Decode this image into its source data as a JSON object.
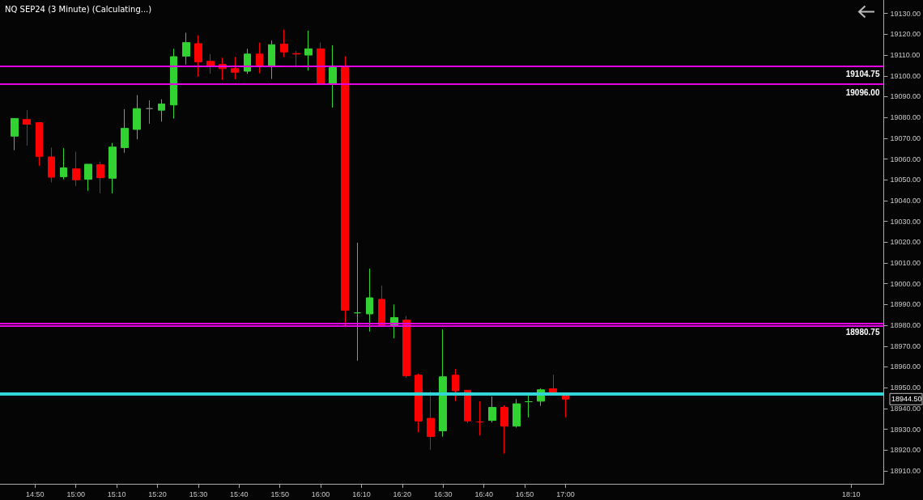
{
  "chart_data": {
    "type": "candlestick",
    "title": "NQ SEP24 (3 Minute) (Calculating...)",
    "x": [
      14.75,
      14.8,
      14.85,
      14.9,
      14.95,
      15,
      15.05,
      15.1,
      15.15,
      15.2,
      15.25,
      15.3,
      15.35,
      15.4,
      15.45,
      15.5,
      15.55,
      15.6,
      15.65,
      15.7,
      15.75,
      15.8,
      15.85,
      15.9,
      15.95,
      16,
      16.05,
      16.1,
      16.15,
      16.2,
      16.25,
      16.3,
      16.35,
      16.4,
      16.45,
      16.5,
      16.55,
      16.6,
      16.65,
      16.7,
      16.75,
      16.8,
      16.85,
      16.9,
      16.95,
      17
    ],
    "ohlc": [
      [
        19071,
        19079.5,
        19064.25,
        19079.5
      ],
      [
        19079,
        19083.5,
        19066.5,
        19076.75
      ],
      [
        19077.5,
        19077.5,
        19056.75,
        19061.25
      ],
      [
        19061,
        19065.5,
        19048.75,
        19051.25
      ],
      [
        19051.5,
        19065.25,
        19050.25,
        19055.75
      ],
      [
        19055.25,
        19063.5,
        19047,
        19050
      ],
      [
        19050.25,
        19057.5,
        19044.75,
        19057.5
      ],
      [
        19057.25,
        19058.75,
        19043.5,
        19051
      ],
      [
        19050.75,
        19067.75,
        19043.5,
        19065.75
      ],
      [
        19065.5,
        19084,
        19063,
        19074.75
      ],
      [
        19074.25,
        19090.75,
        19069.5,
        19084.25
      ],
      [
        19084.25,
        19088.25,
        19077,
        19084.25
      ],
      [
        19083.5,
        19088.75,
        19078,
        19086.5
      ],
      [
        19086,
        19113,
        19079.5,
        19109.25
      ],
      [
        19109.5,
        19120.75,
        19105.5,
        19116
      ],
      [
        19115.5,
        19119.5,
        19099.5,
        19106.75
      ],
      [
        19107,
        19110.5,
        19101,
        19104.75
      ],
      [
        19105.5,
        19108.75,
        19098,
        19103.5
      ],
      [
        19103.5,
        19109,
        19098.5,
        19101.75
      ],
      [
        19102.25,
        19113,
        19101,
        19110.5
      ],
      [
        19110.5,
        19116,
        19101.25,
        19105
      ],
      [
        19104.75,
        19117,
        19098.5,
        19115
      ],
      [
        19115.25,
        19122.25,
        19109,
        19111.5
      ],
      [
        19110.75,
        19112,
        19104.5,
        19110.5
      ],
      [
        19110,
        19121.75,
        19102.5,
        19113
      ],
      [
        19113,
        19116,
        19096,
        19096
      ],
      [
        19096,
        19114.75,
        19084.75,
        19104
      ],
      [
        19104,
        19109.5,
        18980,
        18987.25
      ],
      [
        18986,
        19019.75,
        18963,
        18986
      ],
      [
        18985.5,
        19007.25,
        18977,
        18993.25
      ],
      [
        18992.5,
        18999,
        18980.25,
        18980.25
      ],
      [
        18979.75,
        18990,
        18973.75,
        18983.75
      ],
      [
        18982.5,
        18984.5,
        18954.75,
        18955.75
      ],
      [
        18956,
        18956.75,
        18928.5,
        18934
      ],
      [
        18935.25,
        18948.25,
        18920,
        18926.5
      ],
      [
        18929.25,
        18978,
        18926.5,
        18955.25
      ],
      [
        18956,
        18959,
        18943.5,
        18948.5
      ],
      [
        18948.75,
        18948.75,
        18933,
        18934
      ],
      [
        18933.5,
        18943.5,
        18927,
        18933.5
      ],
      [
        18934.25,
        18945.75,
        18933.25,
        18940.5
      ],
      [
        18940.5,
        18941.5,
        18918.25,
        18931.5
      ],
      [
        18931.5,
        18944.5,
        18930.75,
        18942.25
      ],
      [
        18943.25,
        18947,
        18935.75,
        18943.25
      ],
      [
        18943.5,
        18949.75,
        18941.25,
        18949
      ],
      [
        18949.5,
        18956.25,
        18946.75,
        18946.75
      ],
      [
        18946.75,
        18947,
        18935.75,
        18944.5
      ]
    ],
    "colors": [
      "#32d232",
      "#ff0000",
      "#ff0000",
      "#ff0000",
      "#32d232",
      "#ff0000",
      "#32d232",
      "#ff0000",
      "#32d232",
      "#32d232",
      "#32d232",
      "#808080",
      "#32d232",
      "#32d232",
      "#32d232",
      "#ff0000",
      "#ff0000",
      "#ff0000",
      "#ff0000",
      "#32d232",
      "#ff0000",
      "#32d232",
      "#ff0000",
      "#ff0000",
      "#32d232",
      "#ff0000",
      "#32d232",
      "#ff0000",
      "#32d232",
      "#32d232",
      "#ff0000",
      "#32d232",
      "#ff0000",
      "#ff0000",
      "#ff0000",
      "#32d232",
      "#ff0000",
      "#ff0000",
      "#ff0000",
      "#32d232",
      "#ff0000",
      "#32d232",
      "#32d232",
      "#32d232",
      "#ff0000",
      "#ff0000"
    ],
    "xlim": [
      14.69,
      18.3
    ],
    "xticks": [
      {
        "value": 14.8333,
        "label": "14:50"
      },
      {
        "value": 15,
        "label": "15:00"
      },
      {
        "value": 15.1667,
        "label": "15:10"
      },
      {
        "value": 15.3333,
        "label": "15:20"
      },
      {
        "value": 15.5,
        "label": "15:30"
      },
      {
        "value": 15.6667,
        "label": "15:40"
      },
      {
        "value": 15.8333,
        "label": "15:50"
      },
      {
        "value": 16,
        "label": "16:00"
      },
      {
        "value": 16.1667,
        "label": "16:10"
      },
      {
        "value": 16.3333,
        "label": "16:20"
      },
      {
        "value": 16.5,
        "label": "16:30"
      },
      {
        "value": 16.6667,
        "label": "16:40"
      },
      {
        "value": 16.8333,
        "label": "16:50"
      },
      {
        "value": 17,
        "label": "17:00"
      },
      {
        "value": 18.1667,
        "label": "18:10"
      }
    ],
    "ylim": [
      18903.75,
      19136.5
    ],
    "yticks": [
      {
        "value": 18910,
        "label": "18910.00"
      },
      {
        "value": 18920,
        "label": "18920.00"
      },
      {
        "value": 18930,
        "label": "18930.00"
      },
      {
        "value": 18940,
        "label": "18940.00"
      },
      {
        "value": 18950,
        "label": "18950.00"
      },
      {
        "value": 18960,
        "label": "18960.00"
      },
      {
        "value": 18970,
        "label": "18970.00"
      },
      {
        "value": 18980,
        "label": "18980.00"
      },
      {
        "value": 18990,
        "label": "18990.00"
      },
      {
        "value": 19000,
        "label": "19000.00"
      },
      {
        "value": 19010,
        "label": "19010.00"
      },
      {
        "value": 19020,
        "label": "19020.00"
      },
      {
        "value": 19030,
        "label": "19030.00"
      },
      {
        "value": 19040,
        "label": "19040.00"
      },
      {
        "value": 19050,
        "label": "19050.00"
      },
      {
        "value": 19060,
        "label": "19060.00"
      },
      {
        "value": 19070,
        "label": "19070.00"
      },
      {
        "value": 19080,
        "label": "19080.00"
      },
      {
        "value": 19090,
        "label": "19090.00"
      },
      {
        "value": 19100,
        "label": "19100.00"
      },
      {
        "value": 19110,
        "label": "19110.00"
      },
      {
        "value": 19120,
        "label": "19120.00"
      },
      {
        "value": 19130,
        "label": "19130.00"
      }
    ],
    "ref_lines": [
      {
        "axis": "y",
        "value": 19104.75,
        "label": "19104.75",
        "color": "#e600e6"
      },
      {
        "axis": "y",
        "value": 19096,
        "label": "19096.00",
        "color": "#e600e6"
      },
      {
        "axis": "y",
        "value": 18980.75,
        "label": "18980.75",
        "color": "#e600e6"
      },
      {
        "axis": "y",
        "value": 18979.75,
        "label": null,
        "color": "#e600e6"
      },
      {
        "axis": "y",
        "value": 18947.5,
        "label": null,
        "color": "#33d6d6"
      },
      {
        "axis": "y",
        "value": 18946.5,
        "label": null,
        "color": "#33d6d6"
      }
    ],
    "annotations": [
      "18944.50"
    ]
  }
}
